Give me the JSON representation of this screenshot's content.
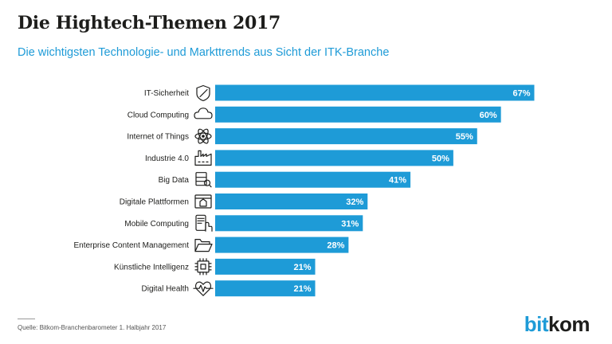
{
  "header": {
    "title": "Die Hightech-Themen 2017",
    "subtitle": "Die wichtigsten Technologie- und Markttrends aus Sicht der ITK-Branche"
  },
  "footer": {
    "source": "Quelle: Bitkom-Branchenbarometer 1. Halbjahr 2017",
    "logo_part1": "bit",
    "logo_part2": "kom"
  },
  "colors": {
    "bar": "#1e9bd7",
    "text": "#1d1d1b",
    "accent": "#1e9bd7"
  },
  "chart_data": {
    "type": "bar",
    "orientation": "horizontal",
    "categories": [
      "IT-Sicherheit",
      "Cloud Computing",
      "Internet of Things",
      "Industrie 4.0",
      "Big Data",
      "Digitale Plattformen",
      "Mobile Computing",
      "Enterprise Content Management",
      "Künstliche Intelligenz",
      "Digital Health"
    ],
    "icons": [
      "shield-icon",
      "cloud-icon",
      "atom-icon",
      "factory-icon",
      "database-search-icon",
      "platform-icon",
      "mobile-touch-icon",
      "folder-icon",
      "chip-icon",
      "heart-pulse-icon"
    ],
    "values": [
      67,
      60,
      55,
      50,
      41,
      32,
      31,
      28,
      21,
      21
    ],
    "value_labels": [
      "67%",
      "60%",
      "55%",
      "50%",
      "41%",
      "32%",
      "31%",
      "28%",
      "21%",
      "21%"
    ],
    "xlim": [
      0,
      67
    ],
    "grid": false
  }
}
